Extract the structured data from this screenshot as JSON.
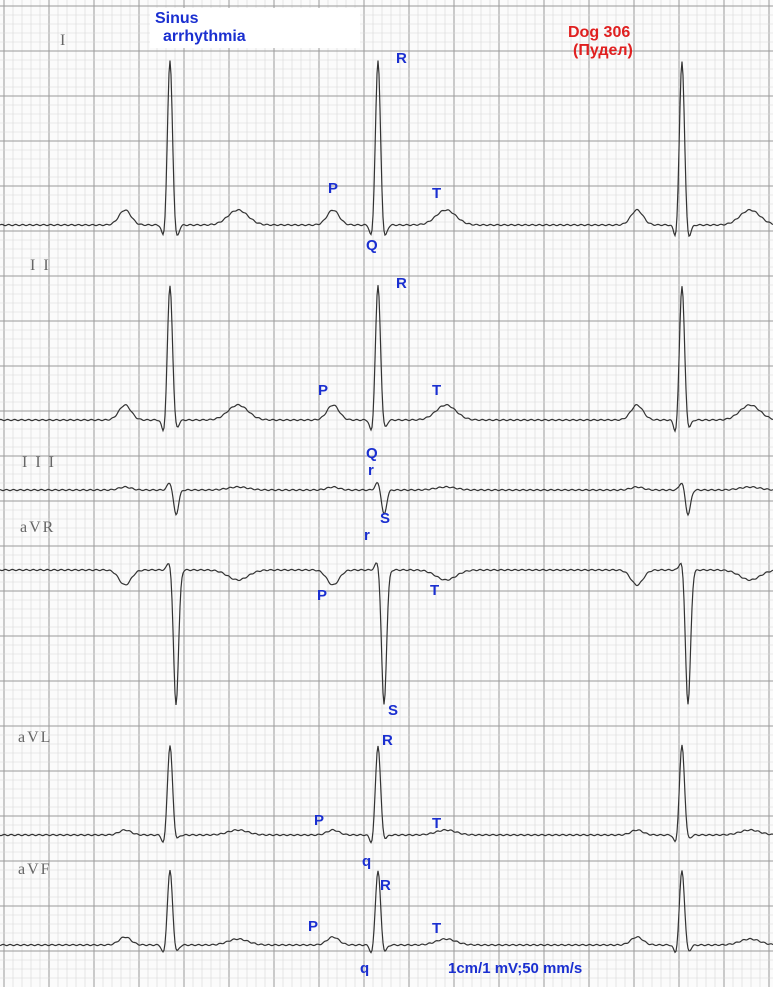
{
  "header": {
    "title_lines": [
      "Sinus",
      "arrhythmia"
    ],
    "subject_lines": [
      "Dog 306",
      "(Пудел)"
    ]
  },
  "leads": [
    {
      "label": "I",
      "waves": [
        "R",
        "P",
        "T",
        "Q"
      ]
    },
    {
      "label": "I I",
      "waves": [
        "R",
        "P",
        "T",
        "Q"
      ]
    },
    {
      "label": "I I I",
      "waves": [
        "r",
        "S"
      ]
    },
    {
      "label": "aVR",
      "waves": [
        "r",
        "P",
        "T",
        "S"
      ]
    },
    {
      "label": "aVL",
      "waves": [
        "R",
        "P",
        "T",
        "q"
      ]
    },
    {
      "label": "aVF",
      "waves": [
        "R",
        "P",
        "T",
        "q"
      ]
    }
  ],
  "calibration": "1cm/1 mV;50 mm/s"
}
